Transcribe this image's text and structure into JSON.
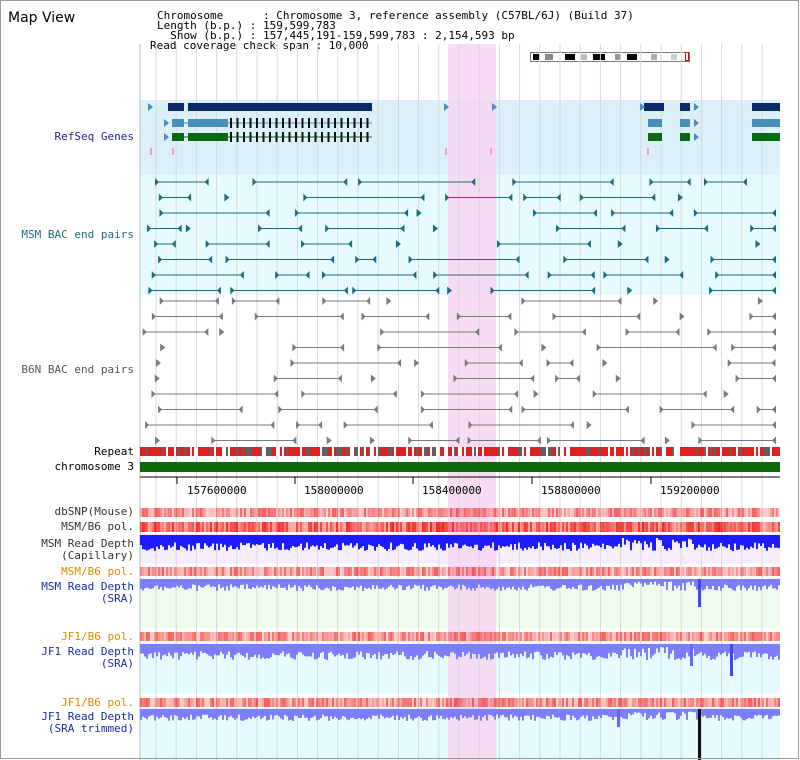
{
  "page": {
    "title": "Map View"
  },
  "header": {
    "chromosome_line": "Chromosome      : Chromosome 3, reference assembly (C57BL/6J) (Build 37)",
    "length_line": "Length (b.p.) : 159,599,783",
    "show_line": "  Show (b.p.) : 157,445,191-159,599,783 : 2,154,593 bp",
    "coverage_line": "Read coverage check span : 10,000"
  },
  "tracks": [
    {
      "id": "refseq",
      "label": "RefSeq Genes",
      "color": "#1f1f8f"
    },
    {
      "id": "msm_bac",
      "label": "MSM BAC end pairs",
      "color": "#1f6a80"
    },
    {
      "id": "b6n_bac",
      "label": "B6N BAC end pairs",
      "color": "#555555"
    },
    {
      "id": "repeat",
      "label": "Repeat",
      "color": "#000000"
    },
    {
      "id": "chrom",
      "label": "chromosome 3",
      "color": "#000000"
    },
    {
      "id": "dbsnp",
      "label": "dbSNP(Mouse)",
      "color": "#333333"
    },
    {
      "id": "msm_b6_pol_1",
      "label": "MSM/B6 pol.",
      "color": "#333333"
    },
    {
      "id": "msm_depth_cap_1",
      "label": "MSM Read Depth",
      "color": "#333333"
    },
    {
      "id": "msm_depth_cap_2",
      "label": "(Capillary)",
      "color": "#333333"
    },
    {
      "id": "msm_b6_pol_2",
      "label": "MSM/B6 pol.",
      "color": "#e08a00"
    },
    {
      "id": "msm_depth_sra_1",
      "label": "MSM Read Depth",
      "color": "#1a2aa8"
    },
    {
      "id": "msm_depth_sra_2",
      "label": "(SRA)",
      "color": "#1a2aa8"
    },
    {
      "id": "jf1_b6_pol_1",
      "label": "JF1/B6 pol.",
      "color": "#e08a00"
    },
    {
      "id": "jf1_depth_sra_1",
      "label": "JF1 Read Depth",
      "color": "#1a2aa8"
    },
    {
      "id": "jf1_depth_sra_2",
      "label": "(SRA)",
      "color": "#1a2aa8"
    },
    {
      "id": "jf1_b6_pol_2",
      "label": "JF1/B6 pol.",
      "color": "#e08a00"
    },
    {
      "id": "jf1_depth_trim_1",
      "label": "JF1 Read Depth",
      "color": "#1a2aa8"
    },
    {
      "id": "jf1_depth_trim_2",
      "label": "(SRA trimmed)",
      "color": "#1a2aa8"
    }
  ],
  "axis": {
    "ticks": [
      "157600000",
      "158000000",
      "158400000",
      "158800000",
      "159200000"
    ]
  },
  "colors": {
    "refseq_dark": "#0c2a63",
    "refseq_mid": "#4a8fb8",
    "refseq_green": "#0a6a12",
    "msm_bac": "#1f6a80",
    "b6n_bac": "#7a7a7a",
    "highlight": "#f7d6f1",
    "panel_blue": "#dcf0fa",
    "panel_cyan": "#e6fbfd",
    "panel_green": "#eefbee",
    "depth_blue": "#1c1cff",
    "depth_lightblue": "#7d7dff",
    "pol_red": "#f03030",
    "chrom_green": "#0a6a0a"
  }
}
